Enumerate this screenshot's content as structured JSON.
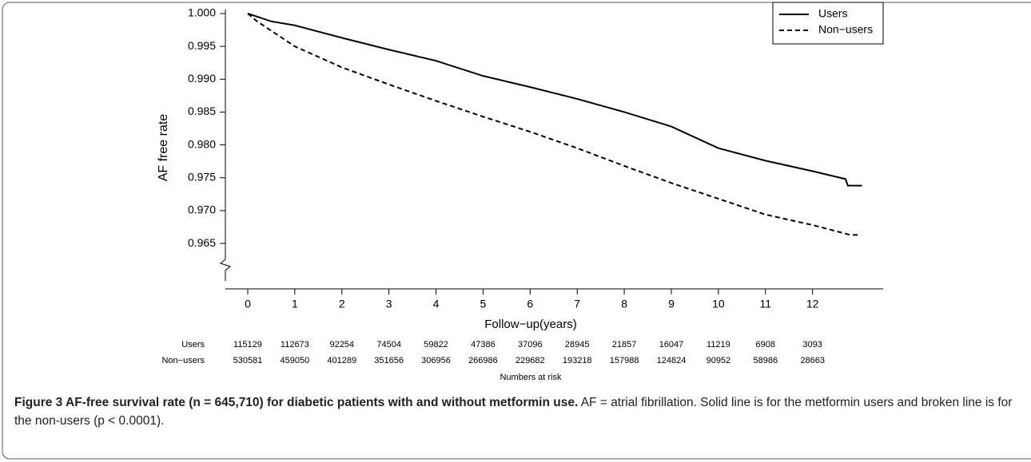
{
  "chart_data": {
    "type": "line",
    "ylabel": "AF free rate",
    "xlabel": "Follow−up(years)",
    "xlim": [
      -0.475,
      13.5
    ],
    "ylim": [
      0.9593,
      1.0006
    ],
    "xticks": [
      0,
      1,
      2,
      3,
      4,
      5,
      6,
      7,
      8,
      9,
      10,
      11,
      12
    ],
    "yticks": [
      {
        "value": 1.0,
        "label": "1.000"
      },
      {
        "value": 0.995,
        "label": "0.995"
      },
      {
        "value": 0.99,
        "label": "0.990"
      },
      {
        "value": 0.985,
        "label": "0.985"
      },
      {
        "value": 0.98,
        "label": "0.980"
      },
      {
        "value": 0.975,
        "label": "0.975"
      },
      {
        "value": 0.97,
        "label": "0.970"
      },
      {
        "value": 0.965,
        "label": "0.965"
      }
    ],
    "legend": "upper right",
    "series": [
      {
        "name": "Users",
        "color": "#000000",
        "dash": "solid",
        "x": [
          0,
          0.5,
          1,
          2,
          3,
          4,
          5,
          6,
          7,
          8,
          9,
          10,
          11,
          12,
          12.7,
          12.75,
          13.05
        ],
        "values": [
          1.0,
          0.9988,
          0.9982,
          0.9963,
          0.9945,
          0.9928,
          0.9905,
          0.9888,
          0.987,
          0.985,
          0.9828,
          0.9795,
          0.9776,
          0.976,
          0.9748,
          0.9738,
          0.9738
        ]
      },
      {
        "name": "Non−users",
        "color": "#000000",
        "dash": "dashed",
        "x": [
          0,
          0.2,
          1,
          2,
          3,
          4,
          5,
          6,
          7,
          8,
          9,
          10,
          11,
          12,
          12.8,
          13
        ],
        "values": [
          1.0,
          0.9988,
          0.995,
          0.9918,
          0.9892,
          0.9867,
          0.9843,
          0.982,
          0.9795,
          0.9768,
          0.9742,
          0.9718,
          0.9694,
          0.9678,
          0.9663,
          0.9663
        ]
      }
    ],
    "risk_table": {
      "title": "Numbers at risk",
      "rows": [
        {
          "name": "Users",
          "values": [
            115129,
            112673,
            92254,
            74504,
            59822,
            47386,
            37096,
            28945,
            21857,
            16047,
            11219,
            6908,
            3093
          ]
        },
        {
          "name": "Non−users",
          "values": [
            530581,
            459050,
            401289,
            351656,
            306956,
            266986,
            229682,
            193218,
            157988,
            124824,
            90952,
            58986,
            28663
          ]
        }
      ]
    }
  },
  "caption": {
    "title": "Figure 3 AF-free survival rate (n = 645,710) for diabetic patients with and without metformin use.",
    "text": "AF = atrial fibrillation. Solid line is for the metformin users and broken line is for the non-users (p < 0.0001)."
  }
}
